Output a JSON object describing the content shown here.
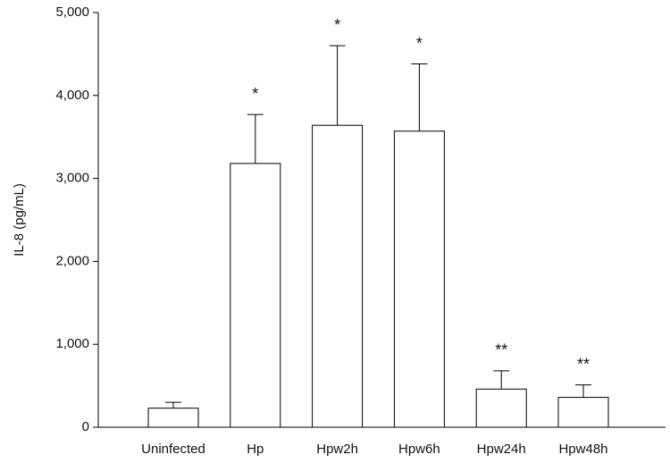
{
  "chart_data": {
    "type": "bar",
    "ylabel": "IL-8 (pg/mL)",
    "categories": [
      "Uninfected",
      "Hp",
      "Hpw2h",
      "Hpw6h",
      "Hpw24h",
      "Hpw48h"
    ],
    "values": [
      230,
      3180,
      3640,
      3570,
      460,
      360
    ],
    "errors": [
      70,
      590,
      960,
      810,
      220,
      150
    ],
    "annotations": [
      null,
      "*",
      "*",
      "*",
      "**",
      "**"
    ],
    "color": "#ffffff",
    "ylim": [
      0,
      5000
    ],
    "yticks": [
      {
        "value": 0,
        "label": "0"
      },
      {
        "value": 1000,
        "label": "1,000"
      },
      {
        "value": 2000,
        "label": "2,000"
      },
      {
        "value": 3000,
        "label": "3,000"
      },
      {
        "value": 4000,
        "label": "4,000"
      },
      {
        "value": 5000,
        "label": "5,000"
      }
    ]
  }
}
